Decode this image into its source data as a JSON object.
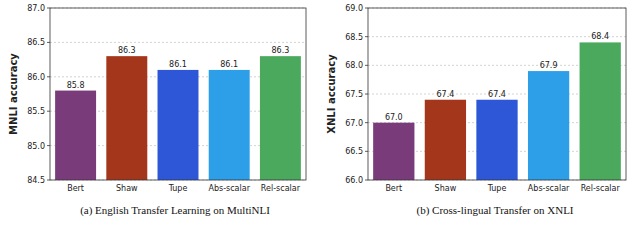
{
  "chart_data": [
    {
      "type": "bar",
      "title": "(a) English Transfer Learning on MultiNLI",
      "y_label": "MNLI accuracy",
      "categories": [
        "Bert",
        "Shaw",
        "Tupe",
        "Abs-scalar",
        "Rel-scalar"
      ],
      "values": [
        85.8,
        86.3,
        86.1,
        86.1,
        86.3
      ],
      "colors": [
        "#7a3b7a",
        "#a4361b",
        "#2d57d6",
        "#2d9fe8",
        "#4ba95e"
      ],
      "ylim": [
        84.5,
        87.0
      ],
      "yticks": [
        84.5,
        {
          "value": 85,
          "label": "85.0"
        },
        85.5,
        {
          "value": 86,
          "label": "86.0"
        },
        86.5,
        {
          "value": 87,
          "label": "87.0"
        }
      ],
      "grid": true,
      "data_labels": true
    },
    {
      "type": "bar",
      "title": "(b) Cross-lingual Transfer on XNLI",
      "y_label": "XNLI accuracy",
      "categories": [
        "Bert",
        "Shaw",
        "Tupe",
        "Abs-scalar",
        "Rel-scalar"
      ],
      "values": [
        67.0,
        67.4,
        67.4,
        67.9,
        68.4
      ],
      "value_labels": [
        "67.0",
        "67.4",
        "67.4",
        "67.9",
        "68.4"
      ],
      "colors": [
        "#7a3b7a",
        "#a4361b",
        "#2d57d6",
        "#2d9fe8",
        "#4ba95e"
      ],
      "ylim": [
        66.0,
        69.0
      ],
      "yticks": [
        {
          "value": 66,
          "label": "66.0"
        },
        66.5,
        {
          "value": 67,
          "label": "67.0"
        },
        67.5,
        {
          "value": 68,
          "label": "68.0"
        },
        68.5,
        {
          "value": 69,
          "label": "69.0"
        }
      ],
      "grid": true,
      "data_labels": true
    }
  ]
}
